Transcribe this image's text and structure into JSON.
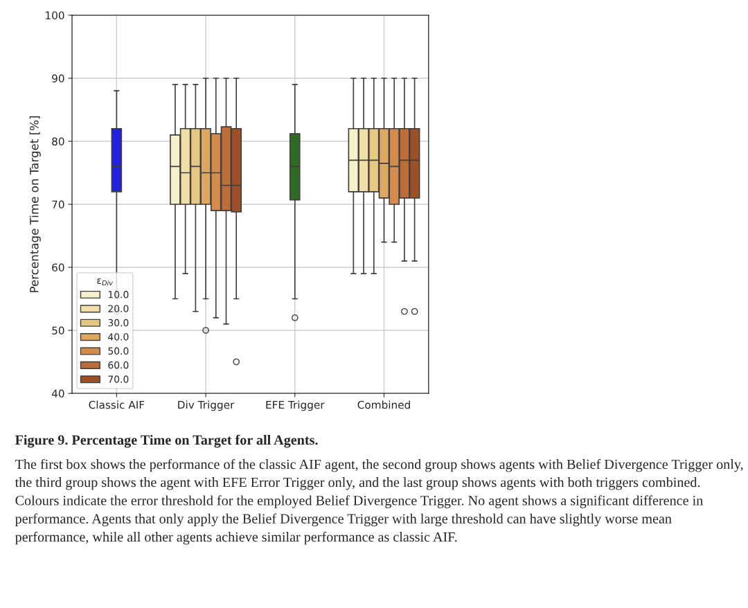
{
  "chart_data": {
    "type": "box",
    "categories": [
      "Classic AIF",
      "Div Trigger",
      "EFE Trigger",
      "Combined"
    ],
    "ylabel": "Percentage Time on Target [%]",
    "ylim": [
      40,
      100
    ],
    "yticks": [
      40,
      50,
      60,
      70,
      80,
      90,
      100
    ],
    "grid": true,
    "legend": "bottom left",
    "legend_title": "ε$_{Div}$",
    "series": [
      {
        "color": "#2222dd",
        "boxes": [
          {
            "low": 55,
            "q1": 72,
            "median": 76,
            "q3": 82,
            "high": 88,
            "outliers": [
              53
            ]
          },
          null,
          null,
          null
        ]
      },
      {
        "name": "10.0",
        "color": "#f6f0cb",
        "boxes": [
          null,
          {
            "low": 55,
            "q1": 70,
            "median": 76,
            "q3": 81,
            "high": 89
          },
          null,
          {
            "low": 59,
            "q1": 72,
            "median": 77,
            "q3": 82,
            "high": 90
          }
        ]
      },
      {
        "name": "20.0",
        "color": "#f0e0a8",
        "boxes": [
          null,
          {
            "low": 59,
            "q1": 70,
            "median": 75,
            "q3": 82,
            "high": 89
          },
          null,
          {
            "low": 59,
            "q1": 72,
            "median": 77,
            "q3": 82,
            "high": 90
          }
        ]
      },
      {
        "name": "30.0",
        "color": "#e7c883",
        "boxes": [
          null,
          {
            "low": 53,
            "q1": 70,
            "median": 76,
            "q3": 82,
            "high": 89
          },
          null,
          {
            "low": 59,
            "q1": 72,
            "median": 77,
            "q3": 82,
            "high": 90
          }
        ]
      },
      {
        "name": "40.0",
        "color": "#dea862",
        "boxes": [
          null,
          {
            "low": 55,
            "q1": 70,
            "median": 75,
            "q3": 82,
            "high": 90,
            "outliers": [
              50
            ]
          },
          null,
          {
            "low": 64,
            "q1": 71,
            "median": 76.5,
            "q3": 82,
            "high": 90
          }
        ]
      },
      {
        "name": "50.0",
        "color": "#d48b4b",
        "boxes": [
          null,
          {
            "low": 52,
            "q1": 69,
            "median": 75,
            "q3": 81.2,
            "high": 90
          },
          null,
          {
            "low": 64,
            "q1": 70,
            "median": 76,
            "q3": 82,
            "high": 90
          }
        ]
      },
      {
        "name": "60.0",
        "color": "#bc6d39",
        "boxes": [
          null,
          {
            "low": 51,
            "q1": 69,
            "median": 73,
            "q3": 82.3,
            "high": 90
          },
          null,
          {
            "low": 61,
            "q1": 71,
            "median": 77,
            "q3": 82,
            "high": 90,
            "outliers": [
              53
            ]
          }
        ]
      },
      {
        "name": "70.0",
        "color": "#9e5027",
        "boxes": [
          null,
          {
            "low": 55,
            "q1": 68.8,
            "median": 73,
            "q3": 82,
            "high": 90,
            "outliers": [
              45
            ]
          },
          null,
          {
            "low": 61,
            "q1": 71,
            "median": 77,
            "q3": 82,
            "high": 90,
            "outliers": [
              53
            ]
          }
        ]
      },
      {
        "color": "#2f6b23",
        "boxes": [
          null,
          null,
          {
            "low": 55,
            "q1": 70.7,
            "median": 76,
            "q3": 81.2,
            "high": 89,
            "outliers": [
              52
            ]
          },
          null
        ]
      }
    ],
    "annotations": [
      "Figure 9. Percentage Time on Target for all Agents.",
      "The first box shows the performance of the classic AIF agent, the second group shows agents with Belief Divergence Trigger only, the third group shows the agent with EFE Error Trigger only, and the last group shows agents with both triggers combined. Colours indicate the error threshold for the employed Belief Divergence Trigger. No agent shows a significant difference in performance. Agents that only apply the Belief Divergence Trigger with large threshold can have slightly worse mean performance, while all other agents achieve similar performance as classic AIF."
    ]
  }
}
